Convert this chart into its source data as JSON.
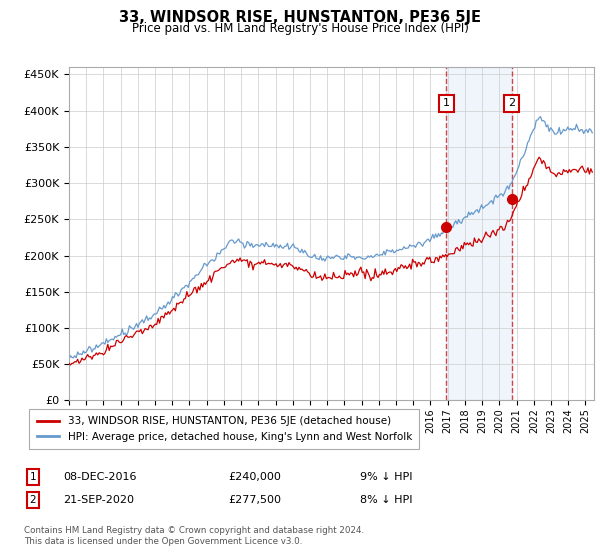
{
  "title": "33, WINDSOR RISE, HUNSTANTON, PE36 5JE",
  "subtitle": "Price paid vs. HM Land Registry's House Price Index (HPI)",
  "ylabel_ticks": [
    "£0",
    "£50K",
    "£100K",
    "£150K",
    "£200K",
    "£250K",
    "£300K",
    "£350K",
    "£400K",
    "£450K"
  ],
  "ytick_values": [
    0,
    50000,
    100000,
    150000,
    200000,
    250000,
    300000,
    350000,
    400000,
    450000
  ],
  "ylim": [
    0,
    460000
  ],
  "xlim_start": 1995.0,
  "xlim_end": 2025.5,
  "transaction1": {
    "date_num": 2016.93,
    "price": 240000,
    "label": "1"
  },
  "transaction2": {
    "date_num": 2020.72,
    "price": 277500,
    "label": "2"
  },
  "legend_entry1": "33, WINDSOR RISE, HUNSTANTON, PE36 5JE (detached house)",
  "legend_entry2": "HPI: Average price, detached house, King's Lynn and West Norfolk",
  "table_row1": [
    "1",
    "08-DEC-2016",
    "£240,000",
    "9% ↓ HPI"
  ],
  "table_row2": [
    "2",
    "21-SEP-2020",
    "£277,500",
    "8% ↓ HPI"
  ],
  "footer": "Contains HM Land Registry data © Crown copyright and database right 2024.\nThis data is licensed under the Open Government Licence v3.0.",
  "line_color_red": "#cc0000",
  "line_color_blue": "#6699cc",
  "vline_color": "#cc3333",
  "background_color": "#ffffff",
  "grid_color": "#cccccc"
}
